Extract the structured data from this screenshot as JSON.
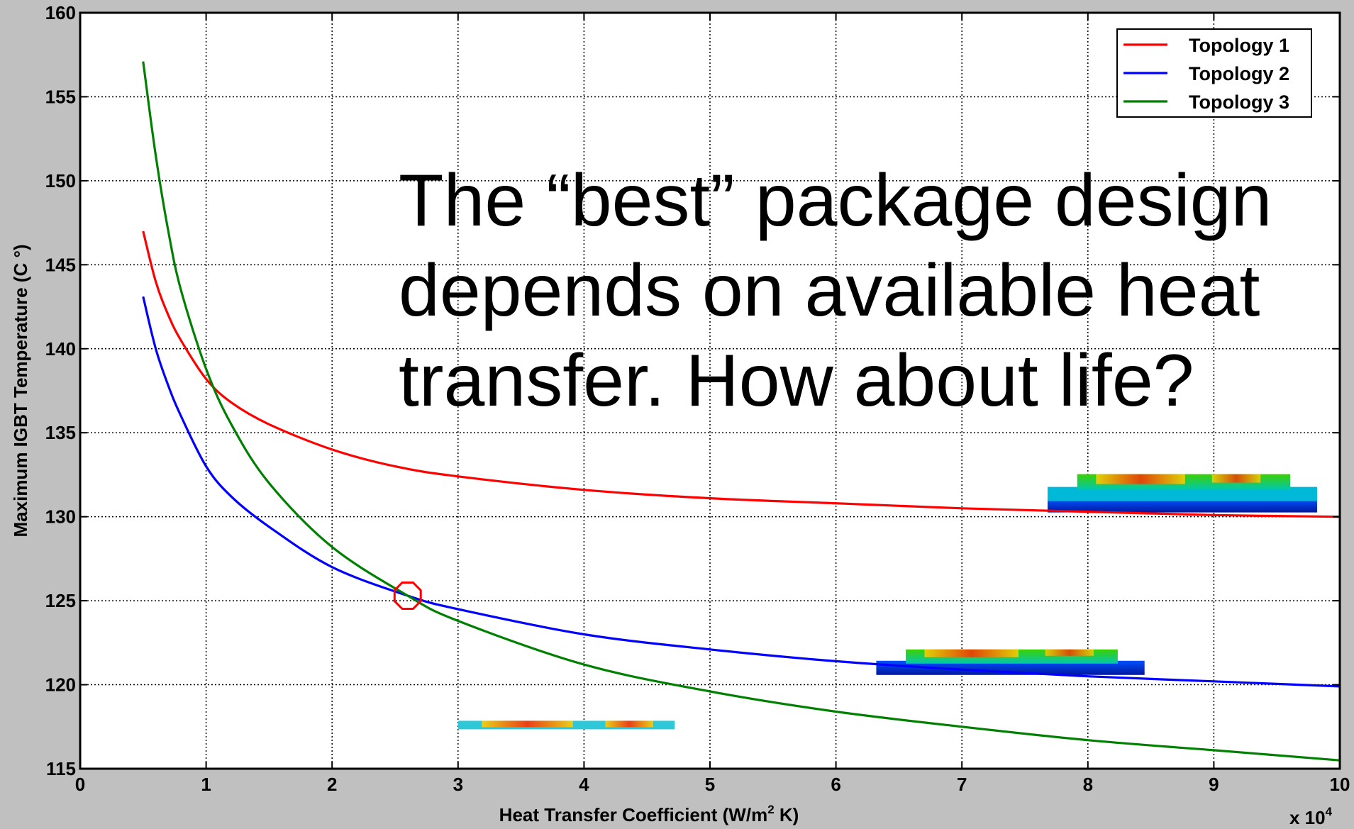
{
  "chart_data": {
    "type": "line",
    "title": "",
    "xlabel": "Heat Transfer Coefficient (W/m",
    "xlabel_sup": "2",
    "xlabel_end": " K)",
    "ylabel": "Maximum IGBT Temperature (C °)",
    "xlim": [
      0,
      10
    ],
    "ylim": [
      115,
      160
    ],
    "x_multiplier": {
      "base": "x 10",
      "exponent": "4"
    },
    "x_ticks": [
      0,
      1,
      2,
      3,
      4,
      5,
      6,
      7,
      8,
      9,
      10
    ],
    "y_ticks": [
      115,
      120,
      125,
      130,
      135,
      140,
      145,
      150,
      155,
      160
    ],
    "grid": true,
    "legend_position": "top-right",
    "series": [
      {
        "name": "Topology 1",
        "color": "#ff0000",
        "x": [
          0.5,
          0.6,
          0.7,
          0.8,
          1.0,
          1.2,
          1.5,
          2.0,
          2.5,
          3.0,
          4.0,
          5.0,
          6.0,
          7.0,
          8.0,
          9.0,
          10.0
        ],
        "y": [
          147.0,
          144.0,
          142.0,
          140.5,
          138.2,
          136.8,
          135.5,
          134.0,
          133.0,
          132.4,
          131.6,
          131.1,
          130.8,
          130.5,
          130.3,
          130.1,
          130.0
        ]
      },
      {
        "name": "Topology 2",
        "color": "#0000ff",
        "x": [
          0.5,
          0.6,
          0.7,
          0.8,
          1.0,
          1.2,
          1.5,
          2.0,
          2.6,
          3.0,
          4.0,
          5.0,
          6.0,
          7.0,
          8.0,
          9.0,
          10.0
        ],
        "y": [
          143.1,
          140.0,
          137.8,
          136.0,
          133.0,
          131.2,
          129.4,
          127.0,
          125.3,
          124.5,
          123.0,
          122.1,
          121.4,
          120.9,
          120.5,
          120.2,
          119.9
        ]
      },
      {
        "name": "Topology 3",
        "color": "#008000",
        "x": [
          0.5,
          0.6,
          0.7,
          0.8,
          1.0,
          1.2,
          1.5,
          2.0,
          2.6,
          3.0,
          4.0,
          5.0,
          6.0,
          7.0,
          8.0,
          9.0,
          10.0
        ],
        "y": [
          157.1,
          151.5,
          147.0,
          143.5,
          138.8,
          135.5,
          132.0,
          128.2,
          125.3,
          123.8,
          121.2,
          119.6,
          118.4,
          117.5,
          116.7,
          116.1,
          115.5
        ]
      }
    ],
    "annotation_text": [
      "The “best” package design",
      "depends on available heat",
      "transfer. How about life?"
    ],
    "marker": {
      "x": 2.6,
      "y": 125.3,
      "color": "#ff0000"
    },
    "insets": [
      {
        "name": "topology-3-thermal-map",
        "x0": 3.0,
        "x1": 4.72,
        "y": 117.6,
        "layers": 1
      },
      {
        "name": "topology-2-thermal-map",
        "x0": 6.32,
        "x1": 8.45,
        "y": 121.3,
        "layers": 2
      },
      {
        "name": "topology-1-thermal-map",
        "x0": 7.68,
        "x1": 9.82,
        "y": 131.1,
        "layers": 3
      }
    ]
  }
}
